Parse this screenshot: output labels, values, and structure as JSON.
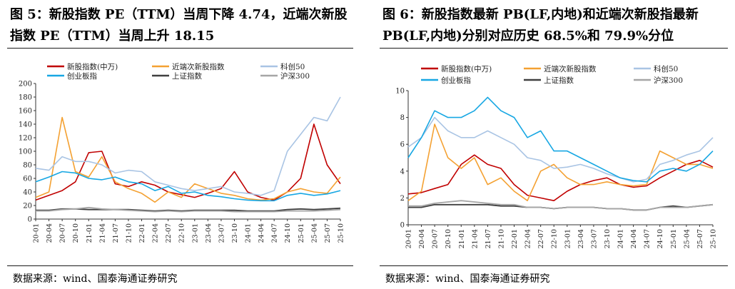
{
  "left": {
    "title": "图 5：新股指数 PE（TTM）当周下降 4.74，近端次新股指数 PE（TTM）当周上升 18.15",
    "source": "数据来源：wind、国泰海通证券研究"
  },
  "right": {
    "title": "图 6：新股指数最新 PB(LF,内地)和近端次新股指最新 PB(LF,内地)分别对应历史 68.5%和 79.9%分位",
    "source": "数据来源：wind、国泰海通证券研究"
  },
  "colors": {
    "xingu": "#c00000",
    "jinduan": "#f4a132",
    "kechuang": "#a9c4e4",
    "chuangye": "#17a7e3",
    "shangzheng": "#404040",
    "hushen": "#a6a6a6"
  },
  "chart_data": [
    {
      "type": "line",
      "id": "pe",
      "x": [
        "20-01",
        "20-04",
        "20-07",
        "20-10",
        "21-01",
        "21-04",
        "21-07",
        "21-10",
        "22-01",
        "22-04",
        "22-07",
        "22-10",
        "23-01",
        "23-04",
        "23-07",
        "23-10",
        "24-01",
        "24-04",
        "24-07",
        "24-10",
        "25-01",
        "25-04",
        "25-07",
        "25-10"
      ],
      "ylim": [
        0,
        200
      ],
      "yticks": [
        0,
        20,
        40,
        60,
        80,
        100,
        120,
        140,
        160,
        180,
        200
      ],
      "legend": [
        "新股指数(中万)",
        "近端次新股指数",
        "科创50",
        "创业板指",
        "上证指数",
        "沪深300"
      ],
      "series": [
        {
          "name": "新股指数(中万)",
          "color": "xingu",
          "values": [
            28,
            35,
            42,
            55,
            98,
            100,
            52,
            48,
            55,
            50,
            40,
            36,
            32,
            38,
            45,
            70,
            40,
            32,
            28,
            40,
            60,
            140,
            80,
            52
          ]
        },
        {
          "name": "近端次新股指数",
          "color": "jinduan",
          "values": [
            32,
            40,
            150,
            70,
            62,
            92,
            55,
            45,
            38,
            25,
            40,
            32,
            52,
            45,
            38,
            35,
            30,
            28,
            30,
            40,
            45,
            40,
            38,
            62
          ]
        },
        {
          "name": "科创50",
          "color": "kechuang",
          "values": [
            75,
            72,
            92,
            85,
            85,
            80,
            68,
            72,
            70,
            55,
            50,
            45,
            42,
            45,
            48,
            40,
            38,
            35,
            42,
            100,
            125,
            150,
            145,
            180
          ]
        },
        {
          "name": "创业板指",
          "color": "chuangye",
          "values": [
            55,
            62,
            70,
            68,
            60,
            58,
            62,
            55,
            52,
            42,
            48,
            38,
            40,
            35,
            33,
            30,
            28,
            27,
            27,
            35,
            38,
            35,
            37,
            42
          ]
        },
        {
          "name": "上证指数",
          "color": "shangzheng",
          "values": [
            13,
            13,
            15,
            15,
            14,
            14,
            14,
            14,
            13,
            12,
            13,
            12,
            13,
            13,
            13,
            13,
            12,
            12,
            12,
            14,
            15,
            14,
            15,
            16
          ]
        },
        {
          "name": "沪深300",
          "color": "hushen",
          "values": [
            12,
            12,
            14,
            15,
            17,
            15,
            14,
            13,
            12,
            11,
            12,
            11,
            12,
            12,
            12,
            11,
            11,
            11,
            11,
            12,
            12,
            12,
            13,
            14
          ]
        }
      ]
    },
    {
      "type": "line",
      "id": "pb",
      "x": [
        "20-01",
        "20-04",
        "20-07",
        "20-10",
        "21-01",
        "21-04",
        "21-07",
        "21-10",
        "22-01",
        "22-04",
        "22-07",
        "22-10",
        "23-01",
        "23-04",
        "23-07",
        "23-10",
        "24-01",
        "24-04",
        "24-07",
        "24-10",
        "25-01",
        "25-04",
        "25-07",
        "25-10"
      ],
      "ylim": [
        0,
        10
      ],
      "yticks": [
        0,
        2,
        4,
        6,
        8,
        10
      ],
      "legend": [
        "新股指数(中万)",
        "近端次新股指数",
        "科创50",
        "创业板指",
        "上证指数",
        "沪深300"
      ],
      "series": [
        {
          "name": "新股指数(中万)",
          "color": "xingu",
          "values": [
            2.3,
            2.4,
            2.7,
            3.0,
            4.5,
            5.2,
            4.5,
            4.2,
            3.0,
            2.2,
            2.0,
            1.8,
            2.5,
            3.0,
            3.3,
            3.5,
            3.0,
            2.8,
            2.9,
            3.5,
            4.0,
            4.5,
            4.8,
            4.3
          ]
        },
        {
          "name": "近端次新股指数",
          "color": "jinduan",
          "values": [
            1.8,
            2.5,
            7.5,
            5.0,
            4.2,
            5.0,
            3.0,
            3.5,
            2.5,
            1.8,
            4.0,
            4.5,
            3.5,
            3.0,
            3.0,
            3.2,
            3.0,
            2.9,
            3.0,
            5.5,
            5.0,
            4.5,
            4.5,
            4.2
          ]
        },
        {
          "name": "科创50",
          "color": "kechuang",
          "values": [
            5.8,
            6.5,
            8.0,
            7.0,
            6.5,
            6.5,
            7.0,
            6.5,
            6.0,
            5.0,
            4.8,
            4.2,
            4.3,
            4.5,
            4.2,
            3.8,
            3.5,
            3.2,
            3.4,
            4.5,
            4.8,
            5.2,
            5.5,
            6.5
          ]
        },
        {
          "name": "创业板指",
          "color": "chuangye",
          "values": [
            5.0,
            6.5,
            8.5,
            8.0,
            8.0,
            8.5,
            9.5,
            8.5,
            8.0,
            6.5,
            7.0,
            5.5,
            5.5,
            5.0,
            4.5,
            4.0,
            3.5,
            3.3,
            3.2,
            4.0,
            4.2,
            4.0,
            4.5,
            5.5
          ]
        },
        {
          "name": "上证指数",
          "color": "shangzheng",
          "values": [
            1.3,
            1.3,
            1.5,
            1.5,
            1.5,
            1.5,
            1.5,
            1.4,
            1.4,
            1.3,
            1.3,
            1.2,
            1.3,
            1.3,
            1.3,
            1.2,
            1.2,
            1.1,
            1.1,
            1.3,
            1.4,
            1.3,
            1.4,
            1.5
          ]
        },
        {
          "name": "沪深300",
          "color": "hushen",
          "values": [
            1.4,
            1.4,
            1.6,
            1.7,
            1.8,
            1.7,
            1.6,
            1.5,
            1.5,
            1.3,
            1.3,
            1.2,
            1.3,
            1.3,
            1.3,
            1.2,
            1.2,
            1.1,
            1.1,
            1.3,
            1.3,
            1.3,
            1.4,
            1.5
          ]
        }
      ]
    }
  ]
}
